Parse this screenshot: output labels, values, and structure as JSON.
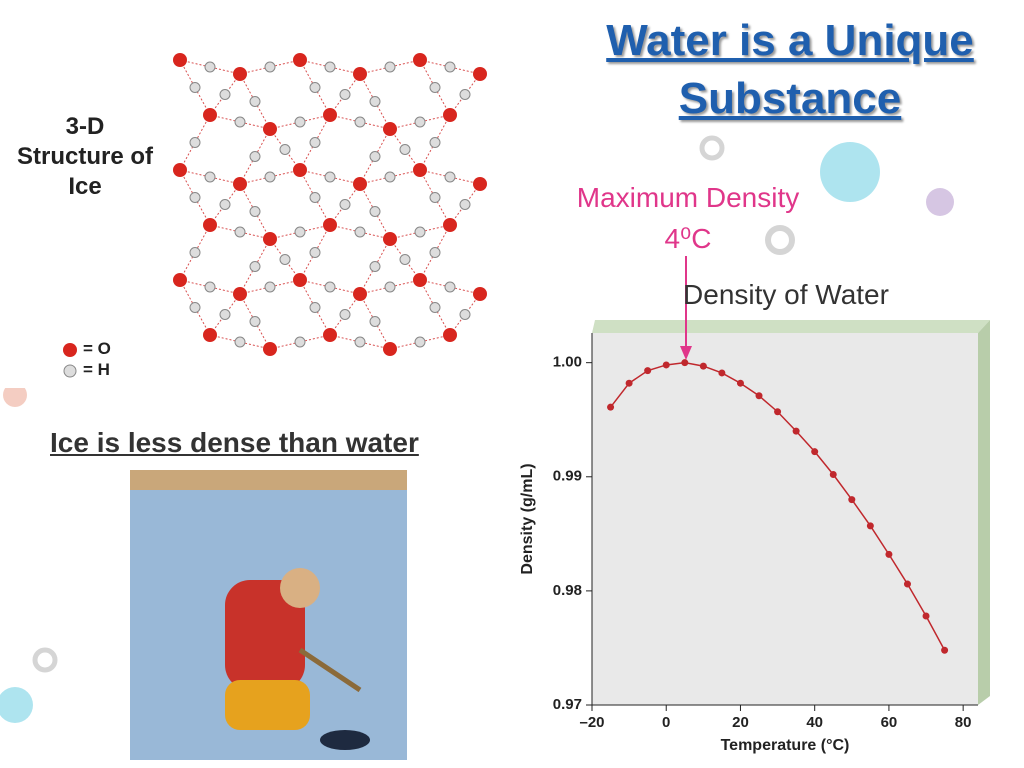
{
  "title": "Water is a Unique Substance",
  "ice_structure": {
    "label": "3-D Structure of Ice",
    "legend": [
      "= O",
      "= H"
    ]
  },
  "photo_caption": "Ice is less dense than water",
  "chart_data": {
    "type": "line",
    "title": "Density of Water",
    "annotation": {
      "text": "Maximum Density",
      "value_text": "4⁰C"
    },
    "x_label": "Temperature (°C)",
    "y_label": "Density (g/mL)",
    "x": [
      -15,
      -10,
      -5,
      0,
      5,
      10,
      15,
      20,
      25,
      30,
      35,
      40,
      45,
      50,
      55,
      60,
      65,
      70,
      75
    ],
    "values": [
      0.9961,
      0.9982,
      0.9993,
      0.9998,
      1.0,
      0.9997,
      0.9991,
      0.9982,
      0.9971,
      0.9957,
      0.994,
      0.9922,
      0.9902,
      0.988,
      0.9857,
      0.9832,
      0.9806,
      0.9778,
      0.9748
    ],
    "color": "#c0282d",
    "xlim": [
      -20,
      84
    ],
    "xticks": [
      {
        "value": -20,
        "label": "–20"
      },
      0,
      20,
      40,
      60,
      80
    ],
    "ylim": [
      0.97,
      1.0026
    ],
    "yticks": [
      {
        "value": 0.97,
        "label": "0.97"
      },
      {
        "value": 0.98,
        "label": "0.98"
      },
      {
        "value": 0.99,
        "label": "0.99"
      },
      {
        "value": 1.0,
        "label": "1.00"
      }
    ]
  }
}
